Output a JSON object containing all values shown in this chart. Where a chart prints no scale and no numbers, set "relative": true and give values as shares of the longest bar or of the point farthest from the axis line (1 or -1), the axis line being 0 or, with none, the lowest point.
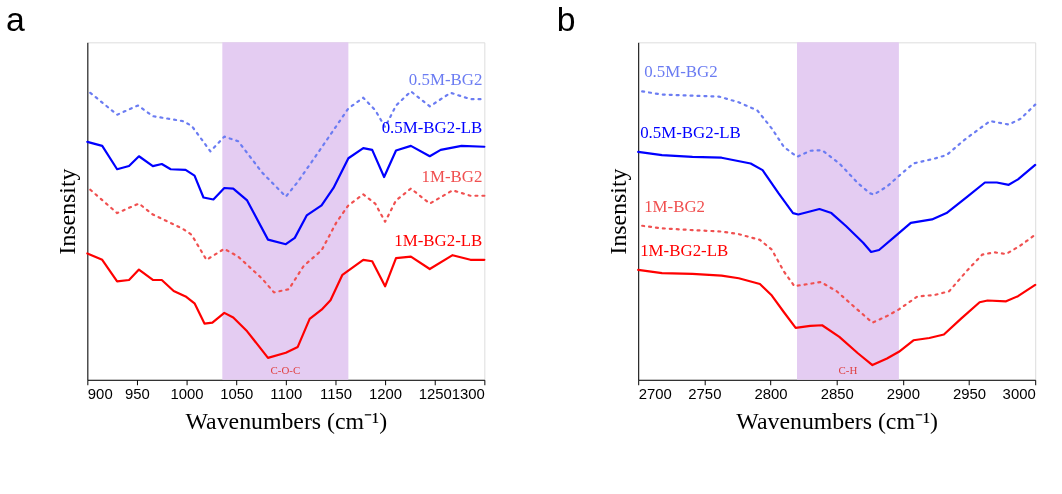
{
  "chart_data": [
    {
      "type": "line",
      "title": "a",
      "relative": true,
      "xlabel": "Wavenumbers (cm⁻¹)",
      "ylabel": "Insensity",
      "xlim": [
        900,
        1300
      ],
      "xticks": [
        900,
        950,
        1000,
        1050,
        1100,
        1150,
        1200,
        1250,
        1300
      ],
      "bands": [
        {
          "axis": "x",
          "from": 1036,
          "to": 1163,
          "color": "#e4ccf2",
          "label": "C-O-C"
        }
      ],
      "series": [
        {
          "name": "0.5M-BG2",
          "color": "#6b7cf2",
          "line_style": "dotted",
          "x": [
            903,
            930,
            951,
            966,
            996,
            1005,
            1024,
            1038,
            1052,
            1076,
            1100,
            1112,
            1136,
            1163,
            1178,
            1190,
            1200,
            1211,
            1226,
            1245,
            1266,
            1286,
            1300
          ],
          "values": [
            0.995,
            0.919,
            0.951,
            0.914,
            0.897,
            0.881,
            0.792,
            0.843,
            0.827,
            0.719,
            0.635,
            0.686,
            0.805,
            0.941,
            0.978,
            0.935,
            0.876,
            0.951,
            1.0,
            0.948,
            0.995,
            0.973,
            0.973
          ]
        },
        {
          "name": "0.5M-BG2-LB",
          "color": "#0000ff",
          "line_style": "solid",
          "x": [
            900,
            915,
            930,
            942,
            952,
            966,
            975,
            984,
            999,
            1008,
            1017,
            1027,
            1038,
            1047,
            1061,
            1082,
            1100,
            1109,
            1121,
            1136,
            1148,
            1163,
            1178,
            1187,
            1199,
            1211,
            1226,
            1245,
            1256,
            1277,
            1300
          ],
          "values": [
            0.825,
            0.811,
            0.73,
            0.741,
            0.775,
            0.741,
            0.748,
            0.73,
            0.728,
            0.708,
            0.632,
            0.625,
            0.665,
            0.663,
            0.622,
            0.486,
            0.47,
            0.492,
            0.57,
            0.605,
            0.665,
            0.768,
            0.803,
            0.797,
            0.703,
            0.795,
            0.811,
            0.775,
            0.797,
            0.811,
            0.808
          ]
        },
        {
          "name": "1M-BG2",
          "color": "#f05050",
          "line_style": "dotted",
          "x": [
            903,
            930,
            952,
            966,
            996,
            1005,
            1020,
            1038,
            1052,
            1076,
            1088,
            1103,
            1118,
            1136,
            1151,
            1163,
            1178,
            1190,
            1200,
            1211,
            1226,
            1245,
            1268,
            1286,
            1300
          ],
          "values": [
            0.659,
            0.578,
            0.611,
            0.573,
            0.524,
            0.503,
            0.416,
            0.454,
            0.427,
            0.351,
            0.303,
            0.314,
            0.395,
            0.449,
            0.546,
            0.605,
            0.643,
            0.611,
            0.548,
            0.622,
            0.663,
            0.611,
            0.657,
            0.638,
            0.638
          ]
        },
        {
          "name": "1M-BG2-LB",
          "color": "#ff0000",
          "line_style": "solid",
          "x": [
            900,
            915,
            930,
            942,
            952,
            966,
            975,
            987,
            999,
            1008,
            1018,
            1026,
            1038,
            1047,
            1061,
            1082,
            1100,
            1112,
            1124,
            1136,
            1145,
            1157,
            1178,
            1187,
            1200,
            1211,
            1226,
            1245,
            1268,
            1286,
            1300
          ],
          "values": [
            0.438,
            0.416,
            0.341,
            0.346,
            0.382,
            0.346,
            0.346,
            0.308,
            0.289,
            0.265,
            0.195,
            0.198,
            0.232,
            0.216,
            0.168,
            0.076,
            0.094,
            0.114,
            0.211,
            0.243,
            0.276,
            0.364,
            0.416,
            0.411,
            0.324,
            0.422,
            0.427,
            0.384,
            0.432,
            0.416,
            0.416
          ]
        }
      ]
    },
    {
      "type": "line",
      "title": "b",
      "relative": true,
      "xlabel": "Wavenumbers (cm⁻¹)",
      "ylabel": "Insensity",
      "xlim": [
        2700,
        3000
      ],
      "xticks": [
        2700,
        2750,
        2800,
        2850,
        2900,
        2950,
        3000
      ],
      "bands": [
        {
          "axis": "x",
          "from": 2820,
          "to": 2897,
          "color": "#e4ccf2",
          "label": "C-H"
        }
      ],
      "series": [
        {
          "name": "0.5M-BG2",
          "color": "#6b7cf2",
          "line_style": "dotted",
          "x": [
            2703,
            2718,
            2741,
            2761,
            2776,
            2790,
            2801,
            2810,
            2820,
            2830,
            2839,
            2852,
            2866,
            2875,
            2878,
            2888,
            2897,
            2908,
            2924,
            2933,
            2946,
            2958,
            2966,
            2980,
            2989,
            3000
          ],
          "values": [
            1.0,
            0.989,
            0.985,
            0.982,
            0.962,
            0.934,
            0.871,
            0.808,
            0.773,
            0.794,
            0.796,
            0.75,
            0.682,
            0.647,
            0.642,
            0.67,
            0.707,
            0.75,
            0.767,
            0.779,
            0.83,
            0.871,
            0.897,
            0.885,
            0.905,
            0.954
          ]
        },
        {
          "name": "0.5M-BG2-LB",
          "color": "#0000ff",
          "line_style": "solid",
          "x": [
            2700,
            2718,
            2741,
            2763,
            2785,
            2794,
            2806,
            2817,
            2821,
            2837,
            2846,
            2857,
            2870,
            2876,
            2882,
            2893,
            2906,
            2922,
            2933,
            2949,
            2962,
            2971,
            2980,
            2987,
            3000
          ],
          "values": [
            0.79,
            0.779,
            0.773,
            0.77,
            0.75,
            0.727,
            0.647,
            0.578,
            0.573,
            0.592,
            0.578,
            0.533,
            0.475,
            0.443,
            0.45,
            0.493,
            0.544,
            0.556,
            0.578,
            0.636,
            0.684,
            0.684,
            0.676,
            0.695,
            0.745
          ]
        },
        {
          "name": "1M-BG2",
          "color": "#f05050",
          "line_style": "dotted",
          "x": [
            2703,
            2718,
            2741,
            2763,
            2776,
            2792,
            2801,
            2810,
            2818,
            2830,
            2838,
            2850,
            2864,
            2877,
            2888,
            2897,
            2911,
            2924,
            2935,
            2949,
            2960,
            2969,
            2978,
            2989,
            3000
          ],
          "values": [
            0.534,
            0.525,
            0.519,
            0.514,
            0.505,
            0.485,
            0.451,
            0.376,
            0.325,
            0.333,
            0.339,
            0.307,
            0.25,
            0.198,
            0.221,
            0.244,
            0.289,
            0.294,
            0.307,
            0.381,
            0.434,
            0.442,
            0.436,
            0.466,
            0.503
          ]
        },
        {
          "name": "1M-BG2-LB",
          "color": "#ff0000",
          "line_style": "solid",
          "x": [
            2700,
            2718,
            2741,
            2763,
            2776,
            2792,
            2801,
            2810,
            2819,
            2830,
            2839,
            2852,
            2866,
            2877,
            2888,
            2897,
            2908,
            2920,
            2931,
            2944,
            2958,
            2964,
            2978,
            2987,
            3000
          ],
          "values": [
            0.381,
            0.37,
            0.367,
            0.361,
            0.352,
            0.332,
            0.292,
            0.235,
            0.18,
            0.187,
            0.189,
            0.149,
            0.092,
            0.051,
            0.074,
            0.097,
            0.137,
            0.145,
            0.157,
            0.212,
            0.269,
            0.275,
            0.272,
            0.29,
            0.329
          ]
        }
      ]
    }
  ]
}
